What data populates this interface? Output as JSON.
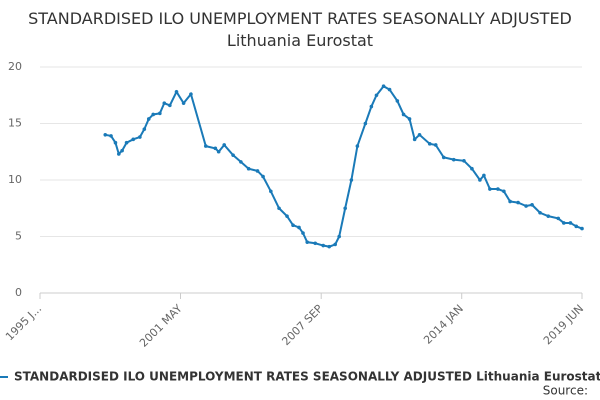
{
  "chart_data": {
    "type": "line",
    "title": "STANDARDISED ILO UNEMPLOYMENT RATES SEASONALLY ADJUSTED Lithuania Eurostat",
    "source": "Source:",
    "x": [
      1997.94,
      1998.2,
      1998.4,
      1998.55,
      1998.7,
      1998.9,
      1999.2,
      1999.5,
      1999.7,
      1999.9,
      2000.1,
      2000.4,
      2000.6,
      2000.85,
      2001.15,
      2001.47,
      2001.8,
      2002.47,
      2002.9,
      2003.05,
      2003.3,
      2003.7,
      2004.05,
      2004.4,
      2004.8,
      2005.05,
      2005.4,
      2005.77,
      2006.13,
      2006.4,
      2006.67,
      2006.85,
      2007.04,
      2007.4,
      2007.76,
      2008.03,
      2008.3,
      2008.48,
      2008.75,
      2009.03,
      2009.3,
      2009.66,
      2009.93,
      2010.16,
      2010.48,
      2010.75,
      2011.1,
      2011.38,
      2011.65,
      2011.88,
      2012.1,
      2012.56,
      2012.83,
      2013.19,
      2013.64,
      2014.1,
      2014.46,
      2014.82,
      2015.0,
      2015.27,
      2015.63,
      2015.9,
      2016.18,
      2016.54,
      2016.9,
      2017.17,
      2017.53,
      2017.9,
      2018.35,
      2018.6,
      2018.9,
      2019.16,
      2019.42
    ],
    "series": [
      {
        "name": "STANDARDISED ILO UNEMPLOYMENT RATES SEASONALLY ADJUSTED Lithuania Eurostat",
        "color": "#1a7ab8",
        "values": [
          14.0,
          13.9,
          13.3,
          12.3,
          12.6,
          13.3,
          13.6,
          13.8,
          14.5,
          15.4,
          15.8,
          15.9,
          16.8,
          16.6,
          17.8,
          16.8,
          17.6,
          13.0,
          12.8,
          12.5,
          13.1,
          12.2,
          11.6,
          11.0,
          10.8,
          10.3,
          9.0,
          7.5,
          6.8,
          6.0,
          5.8,
          5.3,
          4.5,
          4.4,
          4.2,
          4.1,
          4.3,
          5.0,
          7.5,
          10.0,
          13.0,
          15.0,
          16.5,
          17.5,
          18.3,
          18.0,
          17.0,
          15.8,
          15.4,
          13.6,
          14.0,
          13.2,
          13.1,
          12.0,
          11.8,
          11.7,
          11.0,
          10.0,
          10.4,
          9.2,
          9.2,
          9.0,
          8.1,
          8.0,
          7.7,
          7.8,
          7.1,
          6.8,
          6.6,
          6.2,
          6.2,
          5.9,
          5.7
        ]
      }
    ],
    "xlim": [
      1995.0,
      2019.42
    ],
    "xticks": [
      {
        "value": 1995.0,
        "label": "1995 J..."
      },
      {
        "value": 2001.33,
        "label": "2001 MAY"
      },
      {
        "value": 2007.67,
        "label": "2007 SEP"
      },
      {
        "value": 2014.0,
        "label": "2014 JAN"
      },
      {
        "value": 2019.42,
        "label": "2019 JUN"
      }
    ],
    "ylim": [
      0,
      20
    ],
    "yticks": [
      0,
      5,
      10,
      15,
      20
    ],
    "grid": true
  }
}
